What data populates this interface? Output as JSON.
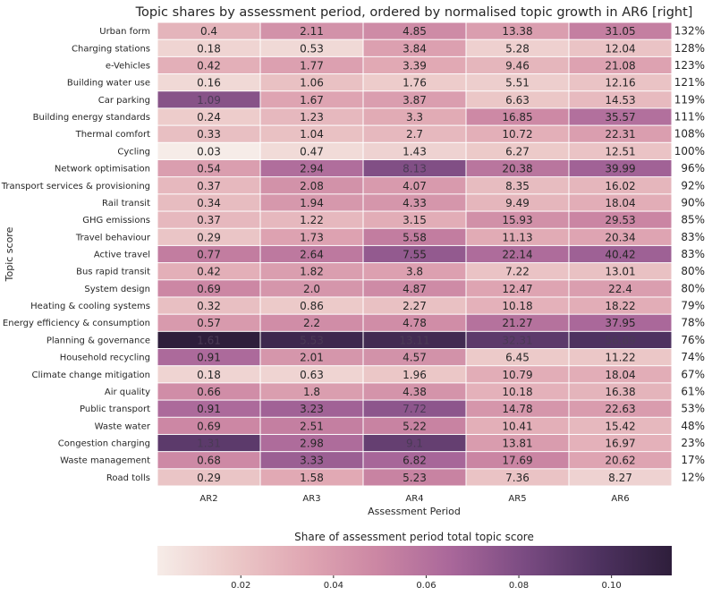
{
  "chart_data": {
    "type": "heatmap",
    "title": "Topic shares by assessment period, ordered by normalised topic growth in AR6 [right]",
    "xlabel": "Assessment Period",
    "ylabel": "Topic score",
    "columns": [
      "AR2",
      "AR3",
      "AR4",
      "AR5",
      "AR6"
    ],
    "rows": [
      {
        "topic": "Urban form",
        "values": [
          "0.4",
          "2.11",
          "4.85",
          "13.38",
          "31.05"
        ],
        "shares": [
          0.028,
          0.044,
          0.047,
          0.038,
          0.053
        ],
        "growth": "132%"
      },
      {
        "topic": "Charging stations",
        "values": [
          "0.18",
          "0.53",
          "3.84",
          "5.28",
          "12.04"
        ],
        "shares": [
          0.013,
          0.011,
          0.037,
          0.015,
          0.021
        ],
        "growth": "128%"
      },
      {
        "topic": "e-Vehicles",
        "values": [
          "0.42",
          "1.77",
          "3.39",
          "9.46",
          "21.08"
        ],
        "shares": [
          0.03,
          0.037,
          0.033,
          0.027,
          0.036
        ],
        "growth": "123%"
      },
      {
        "topic": "Building water use",
        "values": [
          "0.16",
          "1.06",
          "1.76",
          "5.51",
          "12.16"
        ],
        "shares": [
          0.011,
          0.022,
          0.017,
          0.016,
          0.021
        ],
        "growth": "121%"
      },
      {
        "topic": "Car parking",
        "values": [
          "1.09",
          "1.67",
          "3.87",
          "6.63",
          "14.53"
        ],
        "shares": [
          0.077,
          0.035,
          0.038,
          0.019,
          0.025
        ],
        "growth": "119%"
      },
      {
        "topic": "Building energy standards",
        "values": [
          "0.24",
          "1.23",
          "3.3",
          "16.85",
          "35.57"
        ],
        "shares": [
          0.017,
          0.026,
          0.032,
          0.048,
          0.061
        ],
        "growth": "111%"
      },
      {
        "topic": "Thermal comfort",
        "values": [
          "0.33",
          "1.04",
          "2.7",
          "10.72",
          "22.31"
        ],
        "shares": [
          0.023,
          0.022,
          0.026,
          0.03,
          0.038
        ],
        "growth": "108%"
      },
      {
        "topic": "Cycling",
        "values": [
          "0.03",
          "0.47",
          "1.43",
          "6.27",
          "12.51"
        ],
        "shares": [
          0.002,
          0.01,
          0.014,
          0.018,
          0.021
        ],
        "growth": "100%"
      },
      {
        "topic": "Network optimisation",
        "values": [
          "0.54",
          "2.94",
          "8.13",
          "20.38",
          "39.99"
        ],
        "shares": [
          0.038,
          0.062,
          0.079,
          0.058,
          0.068
        ],
        "growth": "96%"
      },
      {
        "topic": "Transport services & provisioning",
        "values": [
          "0.37",
          "2.08",
          "4.07",
          "8.35",
          "16.02"
        ],
        "shares": [
          0.026,
          0.044,
          0.04,
          0.024,
          0.027
        ],
        "growth": "92%"
      },
      {
        "topic": "Rail transit",
        "values": [
          "0.34",
          "1.94",
          "4.33",
          "9.49",
          "18.04"
        ],
        "shares": [
          0.024,
          0.041,
          0.042,
          0.027,
          0.031
        ],
        "growth": "90%"
      },
      {
        "topic": "GHG emissions",
        "values": [
          "0.37",
          "1.22",
          "3.15",
          "15.93",
          "29.53"
        ],
        "shares": [
          0.026,
          0.026,
          0.031,
          0.045,
          0.05
        ],
        "growth": "85%"
      },
      {
        "topic": "Travel behaviour",
        "values": [
          "0.29",
          "1.73",
          "5.58",
          "11.13",
          "20.34"
        ],
        "shares": [
          0.02,
          0.036,
          0.054,
          0.032,
          0.035
        ],
        "growth": "83%"
      },
      {
        "topic": "Active travel",
        "values": [
          "0.77",
          "2.64",
          "7.55",
          "22.14",
          "40.42"
        ],
        "shares": [
          0.054,
          0.056,
          0.073,
          0.063,
          0.069
        ],
        "growth": "83%"
      },
      {
        "topic": "Bus rapid transit",
        "values": [
          "0.42",
          "1.82",
          "3.8",
          "7.22",
          "13.01"
        ],
        "shares": [
          0.03,
          0.038,
          0.037,
          0.021,
          0.022
        ],
        "growth": "80%"
      },
      {
        "topic": "System design",
        "values": [
          "0.69",
          "2.0",
          "4.87",
          "12.47",
          "22.4"
        ],
        "shares": [
          0.049,
          0.042,
          0.047,
          0.035,
          0.038
        ],
        "growth": "80%"
      },
      {
        "topic": "Heating & cooling systems",
        "values": [
          "0.32",
          "0.86",
          "2.27",
          "10.18",
          "18.22"
        ],
        "shares": [
          0.023,
          0.018,
          0.022,
          0.029,
          0.031
        ],
        "growth": "79%"
      },
      {
        "topic": "Energy efficiency & consumption",
        "values": [
          "0.57",
          "2.2",
          "4.78",
          "21.27",
          "37.95"
        ],
        "shares": [
          0.04,
          0.046,
          0.046,
          0.06,
          0.065
        ],
        "growth": "78%"
      },
      {
        "topic": "Planning & governance",
        "values": [
          "1.61",
          "5.53",
          "13.11",
          "32.31",
          "56.89"
        ],
        "shares": [
          0.113,
          0.105,
          0.103,
          0.092,
          0.097
        ],
        "growth": "76%"
      },
      {
        "topic": "Household recycling",
        "values": [
          "0.91",
          "2.01",
          "4.57",
          "6.45",
          "11.22"
        ],
        "shares": [
          0.064,
          0.042,
          0.044,
          0.018,
          0.019
        ],
        "growth": "74%"
      },
      {
        "topic": "Climate change mitigation",
        "values": [
          "0.18",
          "0.63",
          "1.96",
          "10.79",
          "18.04"
        ],
        "shares": [
          0.013,
          0.013,
          0.019,
          0.031,
          0.031
        ],
        "growth": "67%"
      },
      {
        "topic": "Air quality",
        "values": [
          "0.66",
          "1.8",
          "4.38",
          "10.18",
          "16.38"
        ],
        "shares": [
          0.046,
          0.038,
          0.043,
          0.029,
          0.028
        ],
        "growth": "61%"
      },
      {
        "topic": "Public transport",
        "values": [
          "0.91",
          "3.23",
          "7.72",
          "14.78",
          "22.63"
        ],
        "shares": [
          0.064,
          0.068,
          0.075,
          0.042,
          0.039
        ],
        "growth": "53%"
      },
      {
        "topic": "Waste water",
        "values": [
          "0.69",
          "2.51",
          "5.22",
          "10.41",
          "15.42"
        ],
        "shares": [
          0.049,
          0.053,
          0.051,
          0.03,
          0.026
        ],
        "growth": "48%"
      },
      {
        "topic": "Congestion charging",
        "values": [
          "1.31",
          "2.98",
          "9.1",
          "13.81",
          "16.97"
        ],
        "shares": [
          0.092,
          0.063,
          0.089,
          0.039,
          0.029
        ],
        "growth": "23%"
      },
      {
        "topic": "Waste management",
        "values": [
          "0.68",
          "3.33",
          "6.82",
          "17.69",
          "20.62"
        ],
        "shares": [
          0.048,
          0.07,
          0.066,
          0.05,
          0.035
        ],
        "growth": "17%"
      },
      {
        "topic": "Road tolls",
        "values": [
          "0.29",
          "1.58",
          "5.23",
          "7.36",
          "8.27"
        ],
        "shares": [
          0.02,
          0.033,
          0.051,
          0.021,
          0.014
        ],
        "growth": "12%"
      }
    ],
    "colorbar": {
      "label": "Share of assessment period total topic score",
      "range": [
        0.002,
        0.113
      ],
      "ticks": [
        "0.02",
        "0.04",
        "0.06",
        "0.08",
        "0.10"
      ],
      "colors": [
        "#f6ece8",
        "#eccac9",
        "#e0a7b3",
        "#cb86a3",
        "#a9679a",
        "#7a4b82",
        "#4e3260",
        "#2e1e3b"
      ]
    },
    "grid": false,
    "legend": "colorbar-bottom"
  }
}
